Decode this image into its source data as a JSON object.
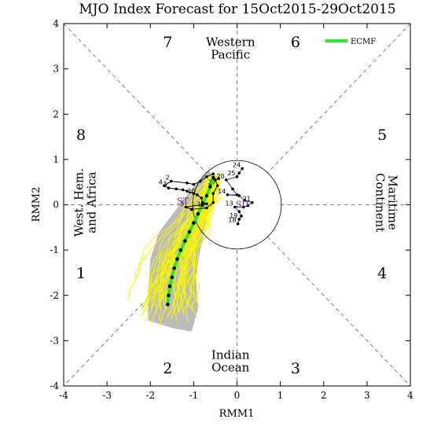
{
  "chart_data": {
    "type": "scatter",
    "title": "MJO Index Forecast for 15Oct2015-29Oct2015",
    "xlabel": "RMM1",
    "ylabel": "RMM2",
    "xlim": [
      -4,
      4
    ],
    "ylim": [
      -4,
      4
    ],
    "xticks": [
      "-4",
      "-3",
      "-2",
      "-1",
      "0",
      "1",
      "2",
      "3",
      "4"
    ],
    "yticks": [
      "-4",
      "-3",
      "-2",
      "-1",
      "0",
      "1",
      "2",
      "3",
      "4"
    ],
    "grid": false,
    "unit_circle_radius": 1,
    "legend": {
      "placement": "top-right",
      "entries": [
        {
          "name": "ECMF",
          "color": "#22ee22"
        }
      ]
    },
    "phases": [
      {
        "label": "1",
        "x": -3.6,
        "y": -1.5
      },
      {
        "label": "2",
        "x": -1.6,
        "y": -3.6
      },
      {
        "label": "3",
        "x": 1.35,
        "y": -3.6
      },
      {
        "label": "4",
        "x": 3.35,
        "y": -1.5
      },
      {
        "label": "5",
        "x": 3.35,
        "y": 1.55
      },
      {
        "label": "6",
        "x": 1.35,
        "y": 3.6
      },
      {
        "label": "7",
        "x": -1.6,
        "y": 3.6
      },
      {
        "label": "8",
        "x": -3.6,
        "y": 1.55
      }
    ],
    "regions": [
      {
        "lines": [
          "Western",
          "Pacific"
        ],
        "x": -0.15,
        "y": 3.45,
        "rotate": 0
      },
      {
        "lines": [
          "Indian",
          "Ocean"
        ],
        "x": -0.15,
        "y": -3.45,
        "rotate": 0
      },
      {
        "lines": [
          "West. Hem.",
          "and Africa"
        ],
        "x": -3.5,
        "y": 0.05,
        "rotate": -90
      },
      {
        "lines": [
          "Maritime",
          "Continent"
        ],
        "x": 3.45,
        "y": 0.05,
        "rotate": 90
      }
    ],
    "observed": {
      "color": "#000000",
      "points": [
        {
          "d": "",
          "x": -0.55,
          "y": 0.68
        },
        {
          "d": "",
          "x": -0.7,
          "y": 0.62
        },
        {
          "d": "",
          "x": -0.85,
          "y": 0.52
        },
        {
          "d": "",
          "x": -1.0,
          "y": 0.45
        },
        {
          "d": "",
          "x": -1.15,
          "y": 0.48
        },
        {
          "d": "2",
          "x": -1.52,
          "y": 0.52
        },
        {
          "d": "4",
          "x": -1.68,
          "y": 0.42
        },
        {
          "d": "3",
          "x": -1.58,
          "y": 0.37
        },
        {
          "d": "",
          "x": -1.4,
          "y": 0.35
        },
        {
          "d": "",
          "x": -1.25,
          "y": 0.33
        },
        {
          "d": "",
          "x": -1.15,
          "y": 0.3
        },
        {
          "d": "",
          "x": -1.0,
          "y": 0.25
        },
        {
          "d": "10",
          "x": -0.92,
          "y": 0.22
        },
        {
          "d": "",
          "x": -0.82,
          "y": 0.15
        },
        {
          "d": "",
          "x": -0.8,
          "y": 0.05
        },
        {
          "d": "",
          "x": -0.7,
          "y": 0.02
        },
        {
          "d": "5",
          "x": -1.18,
          "y": -0.05
        },
        {
          "d": "",
          "x": -1.05,
          "y": -0.1
        },
        {
          "d": "12",
          "x": -0.7,
          "y": -0.07
        },
        {
          "d": "",
          "x": -0.55,
          "y": 0.05
        },
        {
          "d": "",
          "x": -0.55,
          "y": 0.25
        },
        {
          "d": "27",
          "x": -0.45,
          "y": 0.42
        },
        {
          "d": "",
          "x": -0.5,
          "y": 0.55
        },
        {
          "d": "",
          "x": -0.42,
          "y": 0.58
        }
      ]
    },
    "mid_path": {
      "color": "#5a2aa0",
      "points": [
        {
          "d": "24",
          "x": 0.12,
          "y": 0.8
        },
        {
          "d": "",
          "x": 0.05,
          "y": 0.7
        },
        {
          "d": "25",
          "x": 0.0,
          "y": 0.62
        },
        {
          "d": "20",
          "x": -0.25,
          "y": 0.55
        },
        {
          "d": "",
          "x": -0.1,
          "y": 0.35
        },
        {
          "d": "",
          "x": 0.0,
          "y": 0.22
        },
        {
          "d": "14",
          "x": -0.22,
          "y": 0.22
        },
        {
          "d": "",
          "x": 0.05,
          "y": 0.2
        },
        {
          "d": "",
          "x": 0.18,
          "y": 0.1
        },
        {
          "d": "21",
          "x": 0.35,
          "y": 0.05
        },
        {
          "d": "",
          "x": 0.25,
          "y": -0.02
        },
        {
          "d": "",
          "x": 0.15,
          "y": -0.05
        },
        {
          "d": "13",
          "x": -0.05,
          "y": -0.05
        },
        {
          "d": "",
          "x": 0.05,
          "y": -0.15
        },
        {
          "d": "",
          "x": 0.1,
          "y": -0.25
        },
        {
          "d": "19",
          "x": 0.05,
          "y": -0.32
        },
        {
          "d": "18",
          "x": 0.02,
          "y": -0.42
        }
      ]
    },
    "st_labels": [
      {
        "text": "ST",
        "x": -1.25,
        "y": 0.02
      },
      {
        "text": "SD",
        "x": 0.12,
        "y": -0.05
      }
    ],
    "ensemble_mean": {
      "name": "ECMF",
      "color": "#22ee22",
      "points": [
        {
          "x": -0.55,
          "y": 0.6
        },
        {
          "x": -0.62,
          "y": 0.4
        },
        {
          "x": -0.7,
          "y": 0.2
        },
        {
          "x": -0.8,
          "y": 0.0
        },
        {
          "x": -0.9,
          "y": -0.2
        },
        {
          "x": -1.0,
          "y": -0.4
        },
        {
          "x": -1.1,
          "y": -0.6
        },
        {
          "x": -1.2,
          "y": -0.8
        },
        {
          "x": -1.3,
          "y": -1.0
        },
        {
          "x": -1.38,
          "y": -1.2
        },
        {
          "x": -1.45,
          "y": -1.4
        },
        {
          "x": -1.5,
          "y": -1.6
        },
        {
          "x": -1.55,
          "y": -1.8
        },
        {
          "x": -1.58,
          "y": -2.0
        },
        {
          "x": -1.6,
          "y": -2.2
        }
      ]
    },
    "spread_region": {
      "color": "#bbbbbb",
      "points": [
        {
          "x": -0.65,
          "y": 0.75
        },
        {
          "x": -0.45,
          "y": 0.5
        },
        {
          "x": -0.55,
          "y": 0.2
        },
        {
          "x": -0.7,
          "y": -0.2
        },
        {
          "x": -0.75,
          "y": -0.6
        },
        {
          "x": -0.85,
          "y": -1.0
        },
        {
          "x": -0.95,
          "y": -1.6
        },
        {
          "x": -0.9,
          "y": -2.3
        },
        {
          "x": -1.05,
          "y": -2.8
        },
        {
          "x": -1.5,
          "y": -2.72
        },
        {
          "x": -2.05,
          "y": -2.55
        },
        {
          "x": -2.05,
          "y": -1.9
        },
        {
          "x": -2.0,
          "y": -1.2
        },
        {
          "x": -1.8,
          "y": -0.6
        },
        {
          "x": -1.4,
          "y": -0.1
        },
        {
          "x": -1.05,
          "y": 0.35
        }
      ]
    },
    "ensemble_members": {
      "color": "#f7f700",
      "count": 51,
      "start": [
        -0.55,
        0.6
      ],
      "seed": 17
    }
  }
}
